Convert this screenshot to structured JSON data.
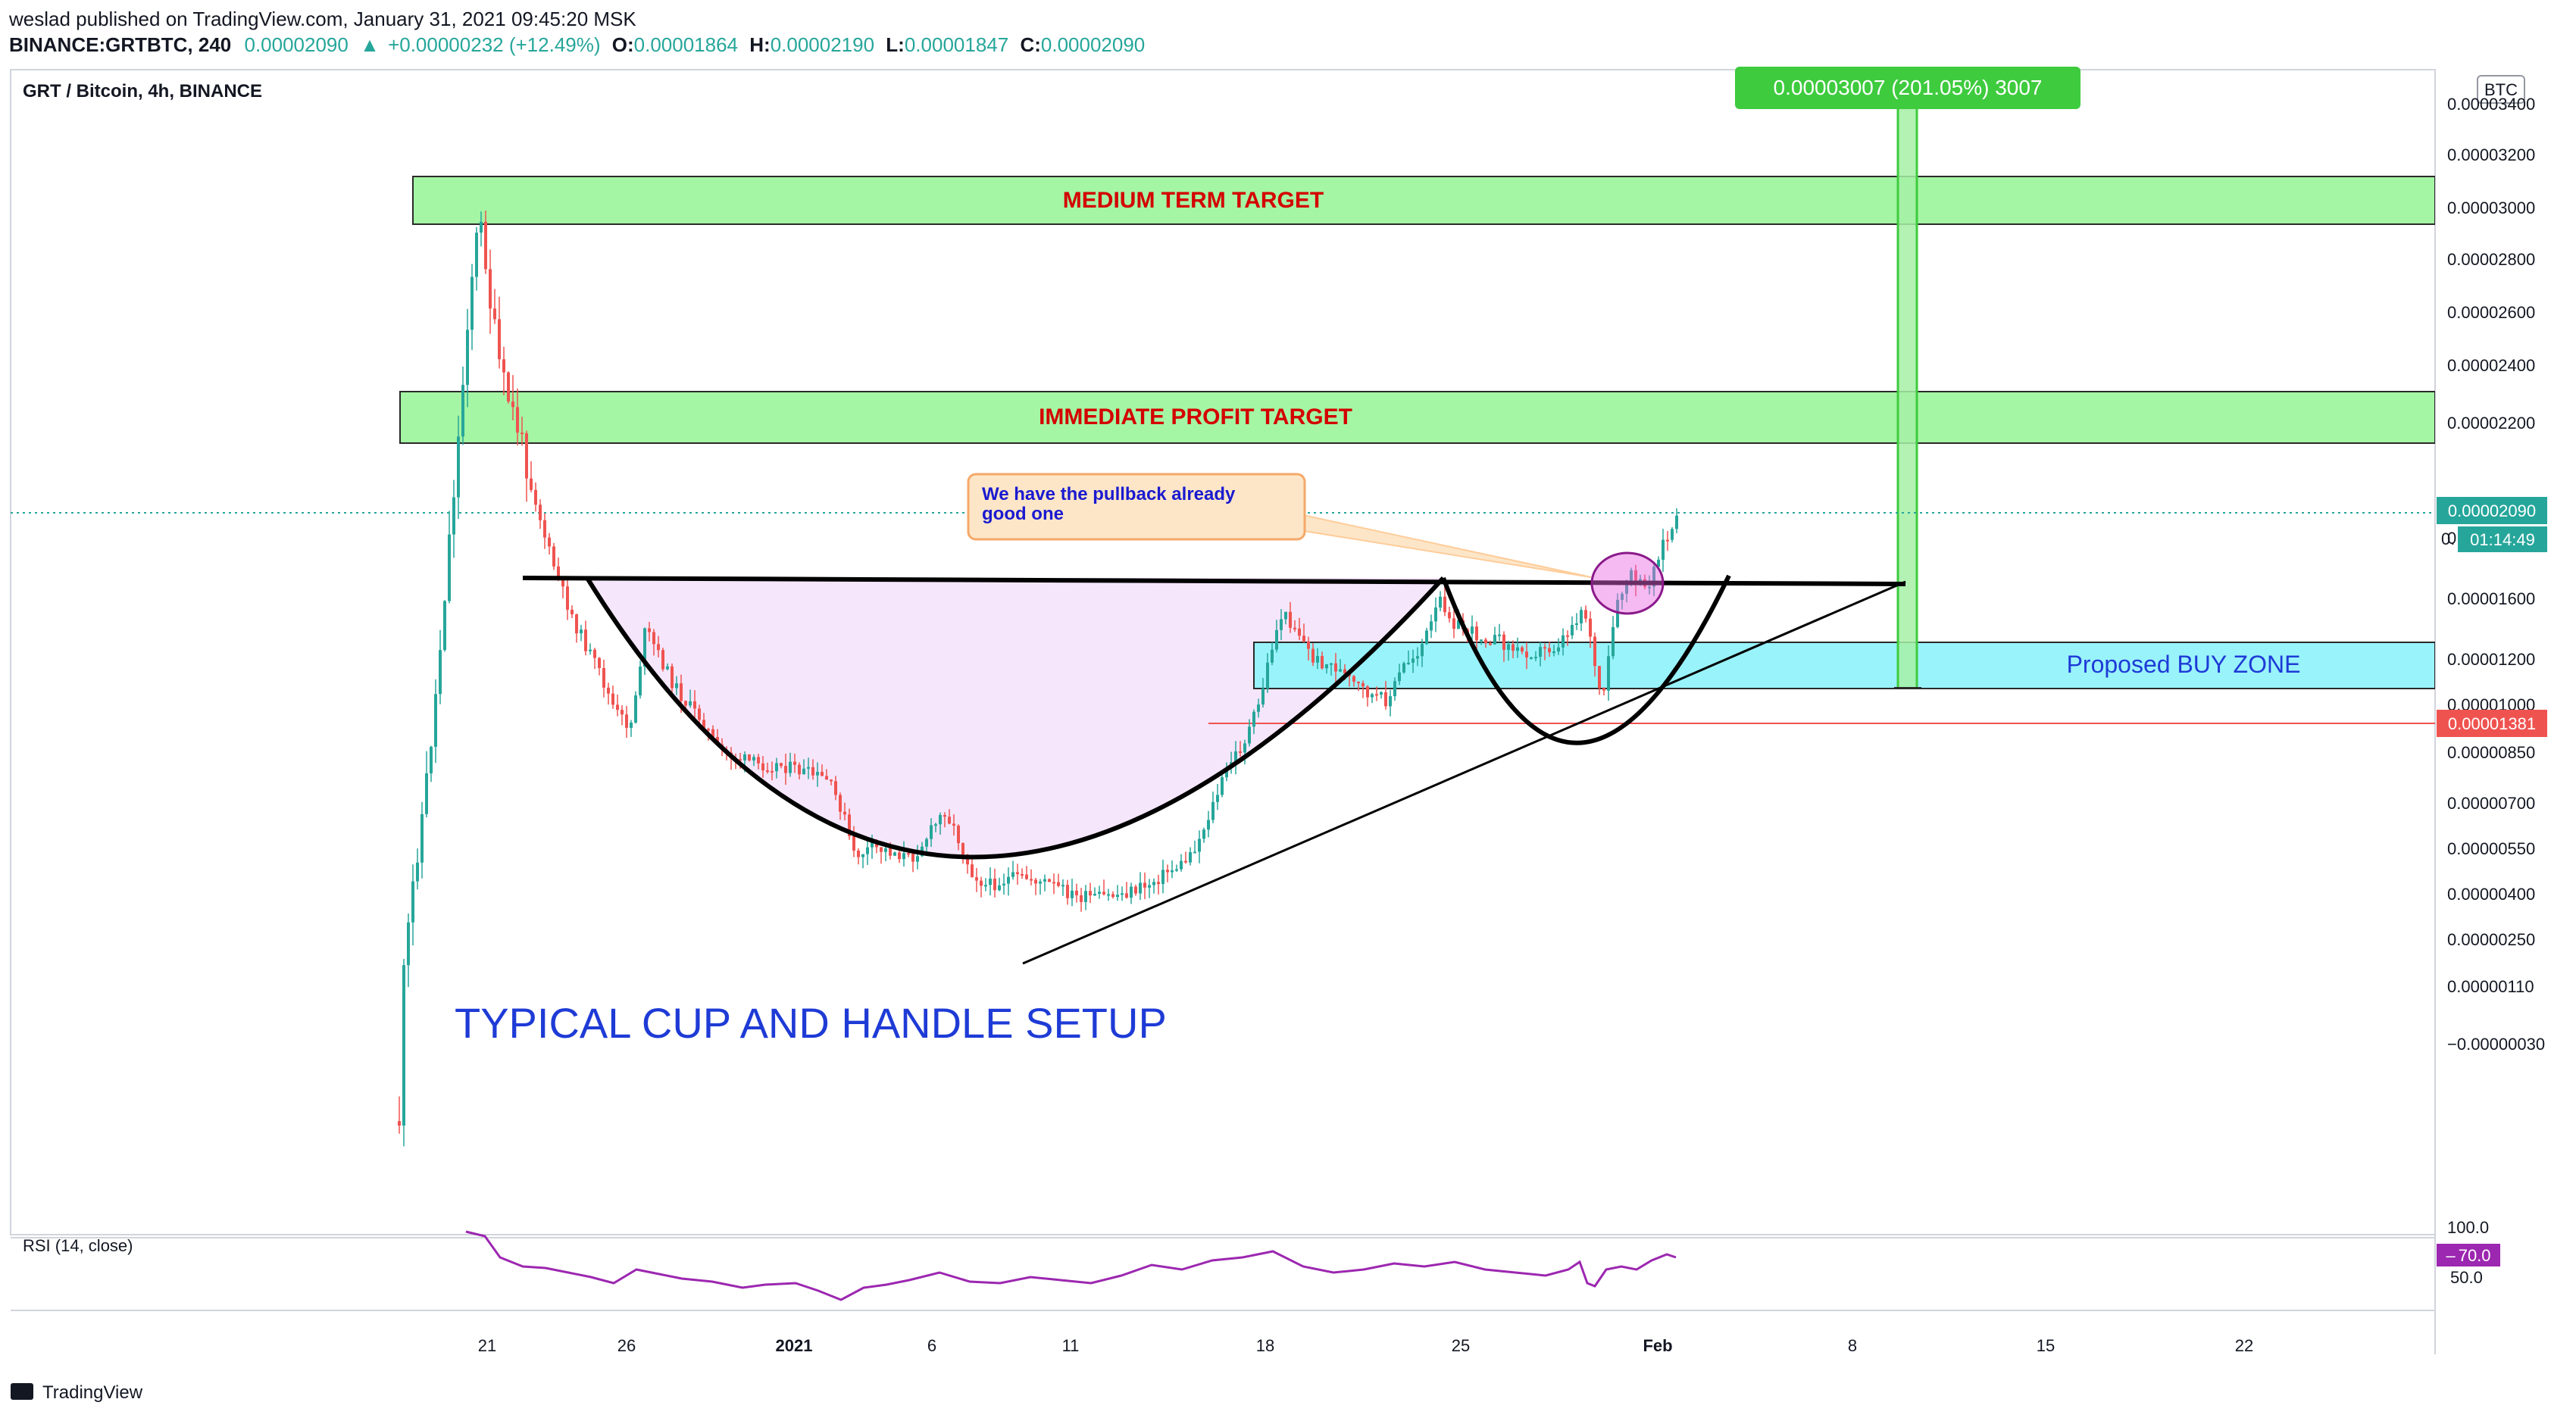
{
  "header": {
    "line1": "weslad published on TradingView.com, January 31, 2021 09:45:20 MSK",
    "symbol": "BINANCE:GRTBTC, 240",
    "last": "0.00002090",
    "change": "+0.00000232 (+12.49%)",
    "o_label": "O:",
    "o_value": "0.00001864",
    "h_label": "H:",
    "h_value": "0.00002190",
    "l_label": "L:",
    "l_value": "0.00001847",
    "c_label": "C:",
    "c_value": "0.00002090"
  },
  "chart_title": "GRT / Bitcoin, 4h, BINANCE",
  "currency": "BTC",
  "brand": "TradingView",
  "colors": {
    "up": "#26a69a",
    "down": "#ef5350",
    "zone_green": "#a4f5a4",
    "zone_cyan": "#99f3fb",
    "cup_fill": "#f5e6fb",
    "rsi": "#9c27b0",
    "measure": "#3ecb3e",
    "accent_blue": "#1e3bd6",
    "label_red": "#d40000"
  },
  "chart_data": {
    "type": "candlestick",
    "price_axis": {
      "ticks": [
        "0.00003400",
        "0.00003200",
        "0.00003000",
        "0.00002800",
        "0.00002600",
        "0.00002400",
        "0.00002200",
        "0.00001800",
        "0.00001600",
        "0.00001200",
        "0.00001000",
        "0.00000850",
        "0.00000700",
        "0.00000550",
        "0.00000400",
        "0.00000250",
        "0.00000110",
        "−0.00000030"
      ],
      "last_price_label": "0.00002090",
      "countdown_label": "01:14:49",
      "support_label": "0.00001381"
    },
    "time_axis": {
      "ticks": [
        "21",
        "26",
        "2021",
        "6",
        "11",
        "18",
        "25",
        "Feb",
        "8",
        "15",
        "22"
      ]
    },
    "zones": [
      {
        "name": "medium-term-target",
        "label": "MEDIUM TERM TARGET"
      },
      {
        "name": "immediate-profit-target",
        "label": "IMMEDIATE PROFIT TARGET"
      },
      {
        "name": "buy-zone",
        "label": "Proposed BUY ZONE"
      }
    ],
    "measure": {
      "label": "0.00003007 (201.05%) 3007"
    },
    "callout": {
      "line1": "We have the pullback already",
      "line2": "good one"
    },
    "setup_label": "TYPICAL CUP AND HANDLE SETUP",
    "rsi": {
      "label": "RSI (14, close)",
      "axis_ticks": [
        "100.0",
        "50.0"
      ],
      "current_label": "70.0"
    }
  }
}
